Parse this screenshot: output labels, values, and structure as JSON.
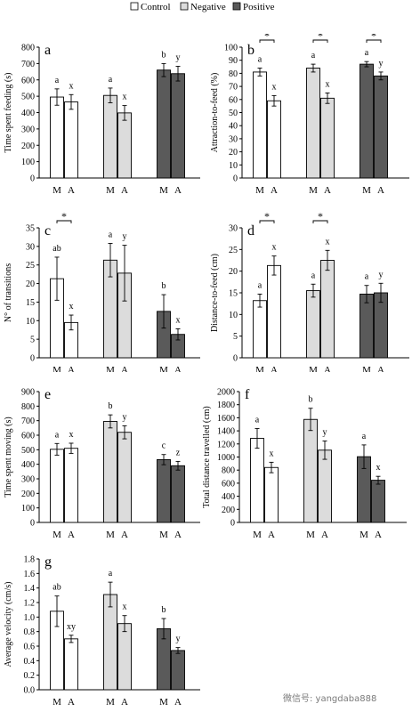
{
  "legend": [
    {
      "label": "Control",
      "color": "#ffffff"
    },
    {
      "label": "Negative",
      "color": "#dcdcdc"
    },
    {
      "label": "Positive",
      "color": "#5a5a5a"
    }
  ],
  "watermark": "微信号: yangdaba888",
  "chart_data": [
    {
      "type": "bar",
      "panel": "a",
      "ylabel": "Time spent feeding (s)",
      "ylim": [
        0,
        800
      ],
      "ystep": 100,
      "categories": [
        "M",
        "A",
        "M",
        "A",
        "M",
        "A"
      ],
      "groups": [
        "Control",
        "Negative",
        "Positive"
      ],
      "values": [
        495,
        465,
        505,
        398,
        660,
        638
      ],
      "errors": [
        50,
        45,
        45,
        45,
        40,
        45
      ],
      "letters": [
        "a",
        "x",
        "a",
        "x",
        "b",
        "y"
      ],
      "sig_groups": []
    },
    {
      "type": "bar",
      "panel": "b",
      "ylabel": "Attraction-to-feed (%)",
      "ylim": [
        0,
        100
      ],
      "ystep": 10,
      "categories": [
        "M",
        "A",
        "M",
        "A",
        "M",
        "A"
      ],
      "groups": [
        "Control",
        "Negative",
        "Positive"
      ],
      "values": [
        81,
        59,
        84,
        61,
        87,
        78
      ],
      "errors": [
        3,
        4,
        3,
        4,
        2,
        3
      ],
      "letters": [
        "a",
        "x",
        "a",
        "x",
        "a",
        "y"
      ],
      "sig_groups": [
        0,
        1,
        2
      ],
      "sig_label": "*"
    },
    {
      "type": "bar",
      "panel": "c",
      "ylabel": "N° of transitions",
      "ylim": [
        0,
        35
      ],
      "ystep": 5,
      "categories": [
        "M",
        "A",
        "M",
        "A",
        "M",
        "A"
      ],
      "groups": [
        "Control",
        "Negative",
        "Positive"
      ],
      "values": [
        21.3,
        9.5,
        26.3,
        22.8,
        12.5,
        6.3
      ],
      "errors": [
        5.8,
        2.0,
        4.5,
        7.5,
        4.5,
        1.5
      ],
      "letters": [
        "ab",
        "x",
        "a",
        "y",
        "b",
        "x"
      ],
      "sig_groups": [
        0
      ],
      "sig_label": "*"
    },
    {
      "type": "bar",
      "panel": "d",
      "ylabel": "Distance-to-feed (cm)",
      "ylim": [
        0,
        30
      ],
      "ystep": 5,
      "categories": [
        "M",
        "A",
        "M",
        "A",
        "M",
        "A"
      ],
      "groups": [
        "Control",
        "Negative",
        "Positive"
      ],
      "values": [
        13.2,
        21.3,
        15.5,
        22.5,
        14.7,
        15.0
      ],
      "errors": [
        1.5,
        2.2,
        1.5,
        2.3,
        2.0,
        2.2
      ],
      "letters": [
        "a",
        "x",
        "a",
        "x",
        "a",
        "y"
      ],
      "sig_groups": [
        0,
        1
      ],
      "sig_label": "*"
    },
    {
      "type": "bar",
      "panel": "e",
      "ylabel": "Time spent moving (s)",
      "ylim": [
        0,
        900
      ],
      "ystep": 100,
      "categories": [
        "M",
        "A",
        "M",
        "A",
        "M",
        "A"
      ],
      "groups": [
        "Control",
        "Negative",
        "Positive"
      ],
      "values": [
        503,
        510,
        695,
        620,
        432,
        390
      ],
      "errors": [
        40,
        35,
        45,
        45,
        35,
        30
      ],
      "letters": [
        "a",
        "x",
        "b",
        "y",
        "c",
        "z"
      ],
      "sig_groups": []
    },
    {
      "type": "bar",
      "panel": "f",
      "ylabel": "Total distance travelled (cm)",
      "ylim": [
        0,
        2000
      ],
      "ystep": 200,
      "categories": [
        "M",
        "A",
        "M",
        "A",
        "M",
        "A"
      ],
      "groups": [
        "Control",
        "Negative",
        "Positive"
      ],
      "values": [
        1285,
        840,
        1575,
        1105,
        1005,
        645
      ],
      "errors": [
        150,
        80,
        170,
        140,
        180,
        60
      ],
      "letters": [
        "a",
        "x",
        "b",
        "y",
        "a",
        "x"
      ],
      "sig_groups": []
    },
    {
      "type": "bar",
      "panel": "g",
      "ylabel": "Average velocity (cm/s)",
      "ylim": [
        0,
        1.8
      ],
      "ystep": 0.2,
      "categories": [
        "M",
        "A",
        "M",
        "A",
        "M",
        "A"
      ],
      "groups": [
        "Control",
        "Negative",
        "Positive"
      ],
      "values": [
        1.08,
        0.7,
        1.31,
        0.91,
        0.84,
        0.54
      ],
      "errors": [
        0.21,
        0.05,
        0.17,
        0.11,
        0.14,
        0.04
      ],
      "letters": [
        "ab",
        "xy",
        "a",
        "x",
        "b",
        "y"
      ],
      "sig_groups": []
    }
  ]
}
